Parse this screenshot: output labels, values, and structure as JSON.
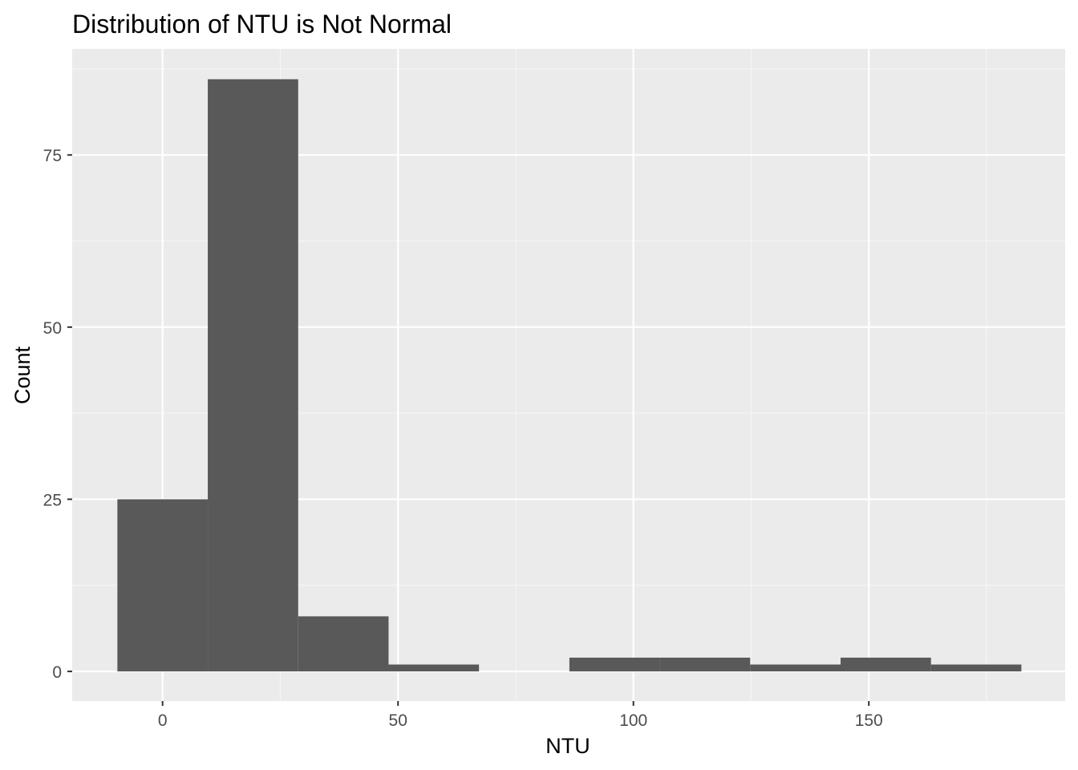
{
  "chart_data": {
    "type": "bar",
    "title": "Distribution of NTU is Not Normal",
    "xlabel": "NTU",
    "ylabel": "Count",
    "xlim": [
      -19.2,
      191.7
    ],
    "ylim": [
      -4.3,
      90.4
    ],
    "x_ticks": [
      0,
      50,
      100,
      150
    ],
    "x_tick_labels": [
      "0",
      "50",
      "100",
      "150"
    ],
    "y_ticks": [
      0,
      25,
      50,
      75
    ],
    "y_tick_labels": [
      "0",
      "25",
      "50",
      "75"
    ],
    "bins": [
      {
        "x0": -9.6,
        "x1": 9.6,
        "count": 25
      },
      {
        "x0": 9.6,
        "x1": 28.8,
        "count": 86
      },
      {
        "x0": 28.8,
        "x1": 48.0,
        "count": 8
      },
      {
        "x0": 48.0,
        "x1": 67.2,
        "count": 1
      },
      {
        "x0": 67.2,
        "x1": 86.4,
        "count": 0
      },
      {
        "x0": 86.4,
        "x1": 105.6,
        "count": 2
      },
      {
        "x0": 105.6,
        "x1": 124.8,
        "count": 2
      },
      {
        "x0": 124.8,
        "x1": 144.0,
        "count": 1
      },
      {
        "x0": 144.0,
        "x1": 163.2,
        "count": 2
      },
      {
        "x0": 163.2,
        "x1": 182.4,
        "count": 1
      }
    ],
    "grid": true,
    "colors": {
      "panel_background": "#ebebeb",
      "grid_major": "#ffffff",
      "grid_minor": "#f5f5f5",
      "bar_fill": "#595959",
      "tick_text": "#4d4d4d",
      "tick_mark": "#333333"
    }
  }
}
